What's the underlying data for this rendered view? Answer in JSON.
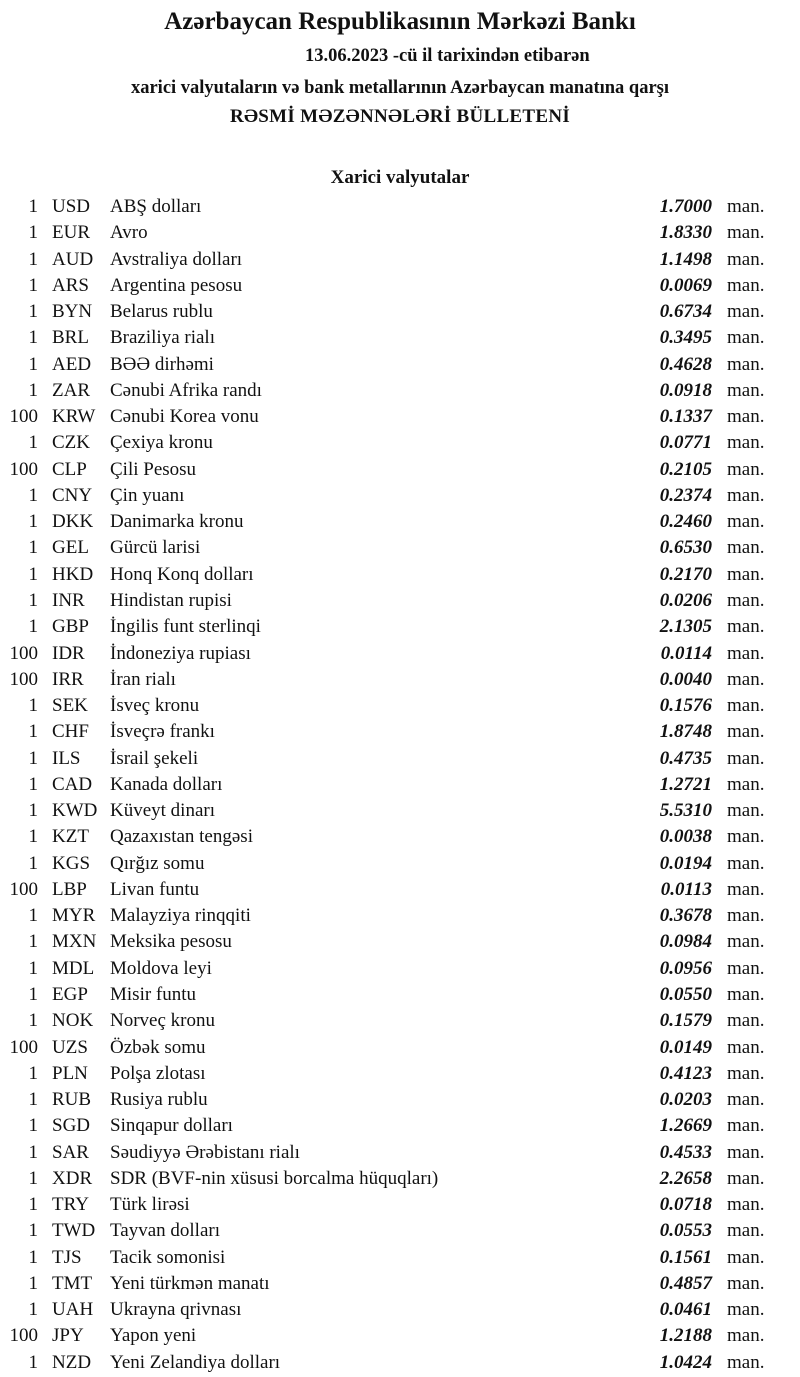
{
  "header": {
    "bank": "Azərbaycan Respublikasının Mərkəzi Bankı",
    "date_line": "13.06.2023  -cü il tarixindən etibarən",
    "subtitle": "xarici valyutaların və bank metallarının Azərbaycan manatına qarşı",
    "title": "RƏSMİ MƏZƏNNƏLƏRİ BÜLLETENİ"
  },
  "section_title": "Xarici valyutalar",
  "unit": "man.",
  "rates": [
    {
      "qty": "1",
      "code": "USD",
      "name": "ABŞ dolları",
      "value": "1.7000"
    },
    {
      "qty": "1",
      "code": "EUR",
      "name": "Avro",
      "value": "1.8330"
    },
    {
      "qty": "1",
      "code": "AUD",
      "name": "Avstraliya dolları",
      "value": "1.1498"
    },
    {
      "qty": "1",
      "code": "ARS",
      "name": "Argentina pesosu",
      "value": "0.0069"
    },
    {
      "qty": "1",
      "code": "BYN",
      "name": "Belarus rublu",
      "value": "0.6734"
    },
    {
      "qty": "1",
      "code": "BRL",
      "name": "Braziliya rialı",
      "value": "0.3495"
    },
    {
      "qty": "1",
      "code": "AED",
      "name": "BƏƏ dirhəmi",
      "value": "0.4628"
    },
    {
      "qty": "1",
      "code": "ZAR",
      "name": "Cənubi Afrika randı",
      "value": "0.0918"
    },
    {
      "qty": "100",
      "code": "KRW",
      "name": "Cənubi Korea vonu",
      "value": "0.1337"
    },
    {
      "qty": "1",
      "code": "CZK",
      "name": "Çexiya kronu",
      "value": "0.0771"
    },
    {
      "qty": "100",
      "code": "CLP",
      "name": "Çili Pesosu",
      "value": "0.2105"
    },
    {
      "qty": "1",
      "code": "CNY",
      "name": "Çin yuanı",
      "value": "0.2374"
    },
    {
      "qty": "1",
      "code": "DKK",
      "name": "Danimarka kronu",
      "value": "0.2460"
    },
    {
      "qty": "1",
      "code": "GEL",
      "name": "Gürcü larisi",
      "value": "0.6530"
    },
    {
      "qty": "1",
      "code": "HKD",
      "name": "Honq Konq dolları",
      "value": "0.2170"
    },
    {
      "qty": "1",
      "code": "INR",
      "name": "Hindistan rupisi",
      "value": "0.0206"
    },
    {
      "qty": "1",
      "code": "GBP",
      "name": "İngilis funt sterlinqi",
      "value": "2.1305"
    },
    {
      "qty": "100",
      "code": "IDR",
      "name": "İndoneziya rupiası",
      "value": "0.0114"
    },
    {
      "qty": "100",
      "code": "IRR",
      "name": "İran rialı",
      "value": "0.0040"
    },
    {
      "qty": "1",
      "code": "SEK",
      "name": "İsveç kronu",
      "value": "0.1576"
    },
    {
      "qty": "1",
      "code": "CHF",
      "name": "İsveçrə frankı",
      "value": "1.8748"
    },
    {
      "qty": "1",
      "code": "ILS",
      "name": "İsrail şekeli",
      "value": "0.4735"
    },
    {
      "qty": "1",
      "code": "CAD",
      "name": "Kanada dolları",
      "value": "1.2721"
    },
    {
      "qty": "1",
      "code": "KWD",
      "name": "Küveyt dinarı",
      "value": "5.5310"
    },
    {
      "qty": "1",
      "code": "KZT",
      "name": "Qazaxıstan tengəsi",
      "value": "0.0038"
    },
    {
      "qty": "1",
      "code": "KGS",
      "name": "Qırğız somu",
      "value": "0.0194"
    },
    {
      "qty": "100",
      "code": "LBP",
      "name": "Livan funtu",
      "value": "0.0113"
    },
    {
      "qty": "1",
      "code": "MYR",
      "name": "Malayziya rinqqiti",
      "value": "0.3678"
    },
    {
      "qty": "1",
      "code": "MXN",
      "name": "Meksika pesosu",
      "value": "0.0984"
    },
    {
      "qty": "1",
      "code": "MDL",
      "name": "Moldova leyi",
      "value": "0.0956"
    },
    {
      "qty": "1",
      "code": "EGP",
      "name": "Misir funtu",
      "value": "0.0550"
    },
    {
      "qty": "1",
      "code": "NOK",
      "name": "Norveç kronu",
      "value": "0.1579"
    },
    {
      "qty": "100",
      "code": "UZS",
      "name": "Özbək somu",
      "value": "0.0149"
    },
    {
      "qty": "1",
      "code": "PLN",
      "name": "Polşa zlotası",
      "value": "0.4123"
    },
    {
      "qty": "1",
      "code": "RUB",
      "name": "Rusiya rublu",
      "value": "0.0203"
    },
    {
      "qty": "1",
      "code": "SGD",
      "name": "Sinqapur dolları",
      "value": "1.2669"
    },
    {
      "qty": "1",
      "code": "SAR",
      "name": "Səudiyyə Ərəbistanı rialı",
      "value": "0.4533"
    },
    {
      "qty": "1",
      "code": "XDR",
      "name": "SDR (BVF-nin xüsusi borcalma hüquqları)",
      "value": "2.2658"
    },
    {
      "qty": "1",
      "code": "TRY",
      "name": "Türk lirəsi",
      "value": "0.0718"
    },
    {
      "qty": "1",
      "code": "TWD",
      "name": "Tayvan dolları",
      "value": "0.0553"
    },
    {
      "qty": "1",
      "code": "TJS",
      "name": "Tacik somonisi",
      "value": "0.1561"
    },
    {
      "qty": "1",
      "code": "TMT",
      "name": "Yeni türkmən manatı",
      "value": "0.4857"
    },
    {
      "qty": "1",
      "code": "UAH",
      "name": "Ukrayna qrivnası",
      "value": "0.0461"
    },
    {
      "qty": "100",
      "code": "JPY",
      "name": "Yapon yeni",
      "value": "1.2188"
    },
    {
      "qty": "1",
      "code": "NZD",
      "name": "Yeni Zelandiya dolları",
      "value": "1.0424"
    }
  ]
}
